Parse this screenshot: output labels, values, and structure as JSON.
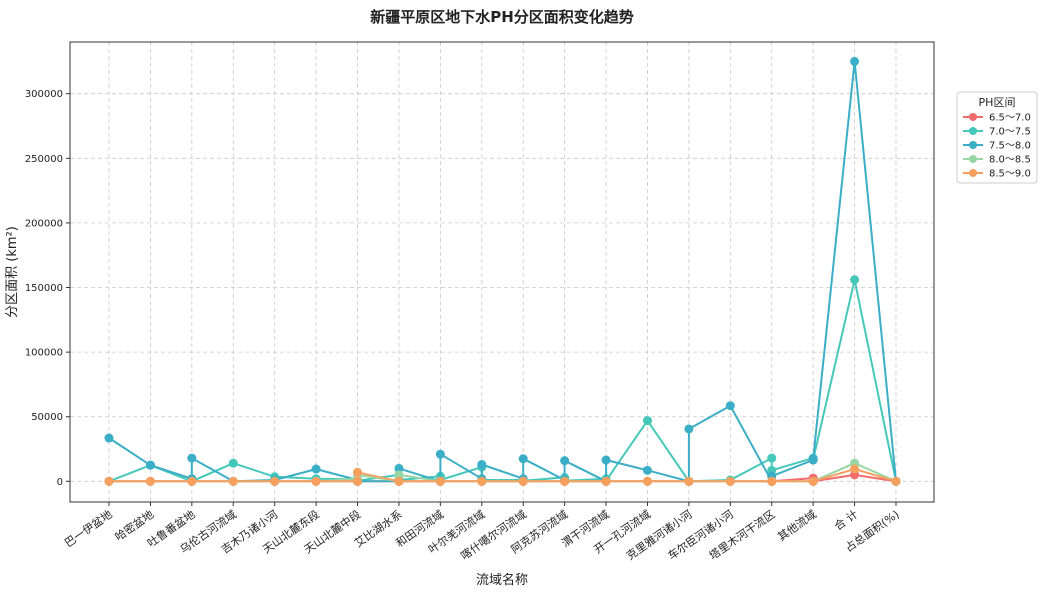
{
  "chart_data": {
    "type": "line",
    "title": "新疆平原区地下水PH分区面积变化趋势",
    "xlabel": "流域名称",
    "ylabel": "分区面积 (km²)",
    "categories": [
      "巴一伊盆地",
      "哈密盆地",
      "吐鲁番盆地",
      "乌伦古河流域",
      "吉木乃诸小河",
      "天山北麓东段",
      "天山北麓中段",
      "艾比湖水系",
      "和田河流域",
      "叶尔羌河流域",
      "喀什噶尔河流域",
      "阿克苏河流域",
      "渭干河流域",
      "开一孔河流域",
      "克里雅河诸小河",
      "车尔臣河诸小河",
      "塔里木河干流区",
      "其他流域",
      "合 计",
      "占总面积(%)"
    ],
    "ylim": [
      -16000,
      340000
    ],
    "yticks": [
      0,
      50000,
      100000,
      150000,
      200000,
      250000,
      300000
    ],
    "grid": true,
    "legend": {
      "title": "PH区间",
      "position": "right-top"
    },
    "series": [
      {
        "name": "6.5～7.0",
        "color": "#f06b6b",
        "points": [
          [
            0,
            0
          ],
          [
            1,
            0
          ],
          [
            2,
            0
          ],
          [
            2,
            0
          ],
          [
            3,
            0
          ],
          [
            4,
            0
          ],
          [
            5,
            0
          ],
          [
            6,
            0
          ],
          [
            6,
            0
          ],
          [
            7,
            0
          ],
          [
            7,
            0
          ],
          [
            8,
            0
          ],
          [
            8,
            0
          ],
          [
            9,
            0
          ],
          [
            9,
            0
          ],
          [
            10,
            0
          ],
          [
            10,
            0
          ],
          [
            11,
            0
          ],
          [
            11,
            0
          ],
          [
            12,
            0
          ],
          [
            12,
            0
          ],
          [
            13,
            0
          ],
          [
            14,
            0
          ],
          [
            14,
            0
          ],
          [
            15,
            0
          ],
          [
            16,
            0
          ],
          [
            16,
            0
          ],
          [
            17,
            2500
          ],
          [
            17,
            0
          ],
          [
            18,
            5000
          ],
          [
            19,
            0
          ]
        ]
      },
      {
        "name": "7.0～7.5",
        "color": "#45c8b9",
        "points": [
          [
            0,
            0
          ],
          [
            1,
            12500
          ],
          [
            2,
            0
          ],
          [
            2,
            0
          ],
          [
            3,
            14000
          ],
          [
            4,
            3500
          ],
          [
            5,
            2000
          ],
          [
            6,
            1500
          ],
          [
            6,
            500
          ],
          [
            7,
            5000
          ],
          [
            7,
            1000
          ],
          [
            8,
            4000
          ],
          [
            8,
            1000
          ],
          [
            9,
            11000
          ],
          [
            9,
            1000
          ],
          [
            10,
            1000
          ],
          [
            10,
            500
          ],
          [
            11,
            3000
          ],
          [
            11,
            500
          ],
          [
            12,
            2000
          ],
          [
            12,
            500
          ],
          [
            13,
            47000
          ],
          [
            14,
            0
          ],
          [
            14,
            0
          ],
          [
            15,
            1000
          ],
          [
            16,
            18000
          ],
          [
            16,
            8500
          ],
          [
            17,
            18000
          ],
          [
            17,
            17000
          ],
          [
            18,
            156000
          ],
          [
            19,
            0
          ]
        ]
      },
      {
        "name": "7.5～8.0",
        "color": "#3aaec6",
        "points": [
          [
            0,
            33500
          ],
          [
            1,
            12500
          ],
          [
            2,
            2000
          ],
          [
            2,
            18000
          ],
          [
            3,
            0
          ],
          [
            4,
            1000
          ],
          [
            5,
            9500
          ],
          [
            6,
            1000
          ],
          [
            6,
            0
          ],
          [
            7,
            0
          ],
          [
            7,
            10000
          ],
          [
            8,
            0
          ],
          [
            8,
            21000
          ],
          [
            9,
            2000
          ],
          [
            9,
            13000
          ],
          [
            10,
            2000
          ],
          [
            10,
            17500
          ],
          [
            11,
            1000
          ],
          [
            11,
            16000
          ],
          [
            12,
            0
          ],
          [
            12,
            16500
          ],
          [
            13,
            8500
          ],
          [
            14,
            0
          ],
          [
            14,
            40500
          ],
          [
            15,
            58500
          ],
          [
            16,
            0
          ],
          [
            16,
            4000
          ],
          [
            17,
            16500
          ],
          [
            17,
            17500
          ],
          [
            18,
            325000
          ],
          [
            19,
            0
          ]
        ]
      },
      {
        "name": "8.0～8.5",
        "color": "#98d5a4",
        "points": [
          [
            0,
            0
          ],
          [
            1,
            0
          ],
          [
            2,
            0
          ],
          [
            2,
            0
          ],
          [
            3,
            0
          ],
          [
            4,
            0
          ],
          [
            5,
            0
          ],
          [
            6,
            2000
          ],
          [
            6,
            5000
          ],
          [
            7,
            0
          ],
          [
            7,
            5000
          ],
          [
            8,
            0
          ],
          [
            8,
            0
          ],
          [
            9,
            0
          ],
          [
            9,
            0
          ],
          [
            10,
            0
          ],
          [
            10,
            0
          ],
          [
            11,
            0
          ],
          [
            11,
            0
          ],
          [
            12,
            0
          ],
          [
            12,
            0
          ],
          [
            13,
            0
          ],
          [
            14,
            0
          ],
          [
            14,
            0
          ],
          [
            15,
            0
          ],
          [
            16,
            0
          ],
          [
            16,
            0
          ],
          [
            17,
            0
          ],
          [
            17,
            0
          ],
          [
            18,
            14000
          ],
          [
            19,
            0
          ]
        ]
      },
      {
        "name": "8.5～9.0",
        "color": "#f7a05e",
        "points": [
          [
            0,
            0
          ],
          [
            1,
            0
          ],
          [
            2,
            0
          ],
          [
            2,
            0
          ],
          [
            3,
            0
          ],
          [
            4,
            0
          ],
          [
            5,
            0
          ],
          [
            6,
            0
          ],
          [
            6,
            7000
          ],
          [
            7,
            0
          ],
          [
            7,
            0
          ],
          [
            8,
            0
          ],
          [
            8,
            0
          ],
          [
            9,
            0
          ],
          [
            9,
            0
          ],
          [
            10,
            0
          ],
          [
            10,
            0
          ],
          [
            11,
            0
          ],
          [
            11,
            0
          ],
          [
            12,
            0
          ],
          [
            12,
            0
          ],
          [
            13,
            0
          ],
          [
            14,
            0
          ],
          [
            14,
            0
          ],
          [
            15,
            0
          ],
          [
            16,
            0
          ],
          [
            16,
            0
          ],
          [
            17,
            0
          ],
          [
            17,
            0
          ],
          [
            18,
            9500
          ],
          [
            19,
            0
          ]
        ]
      }
    ]
  }
}
